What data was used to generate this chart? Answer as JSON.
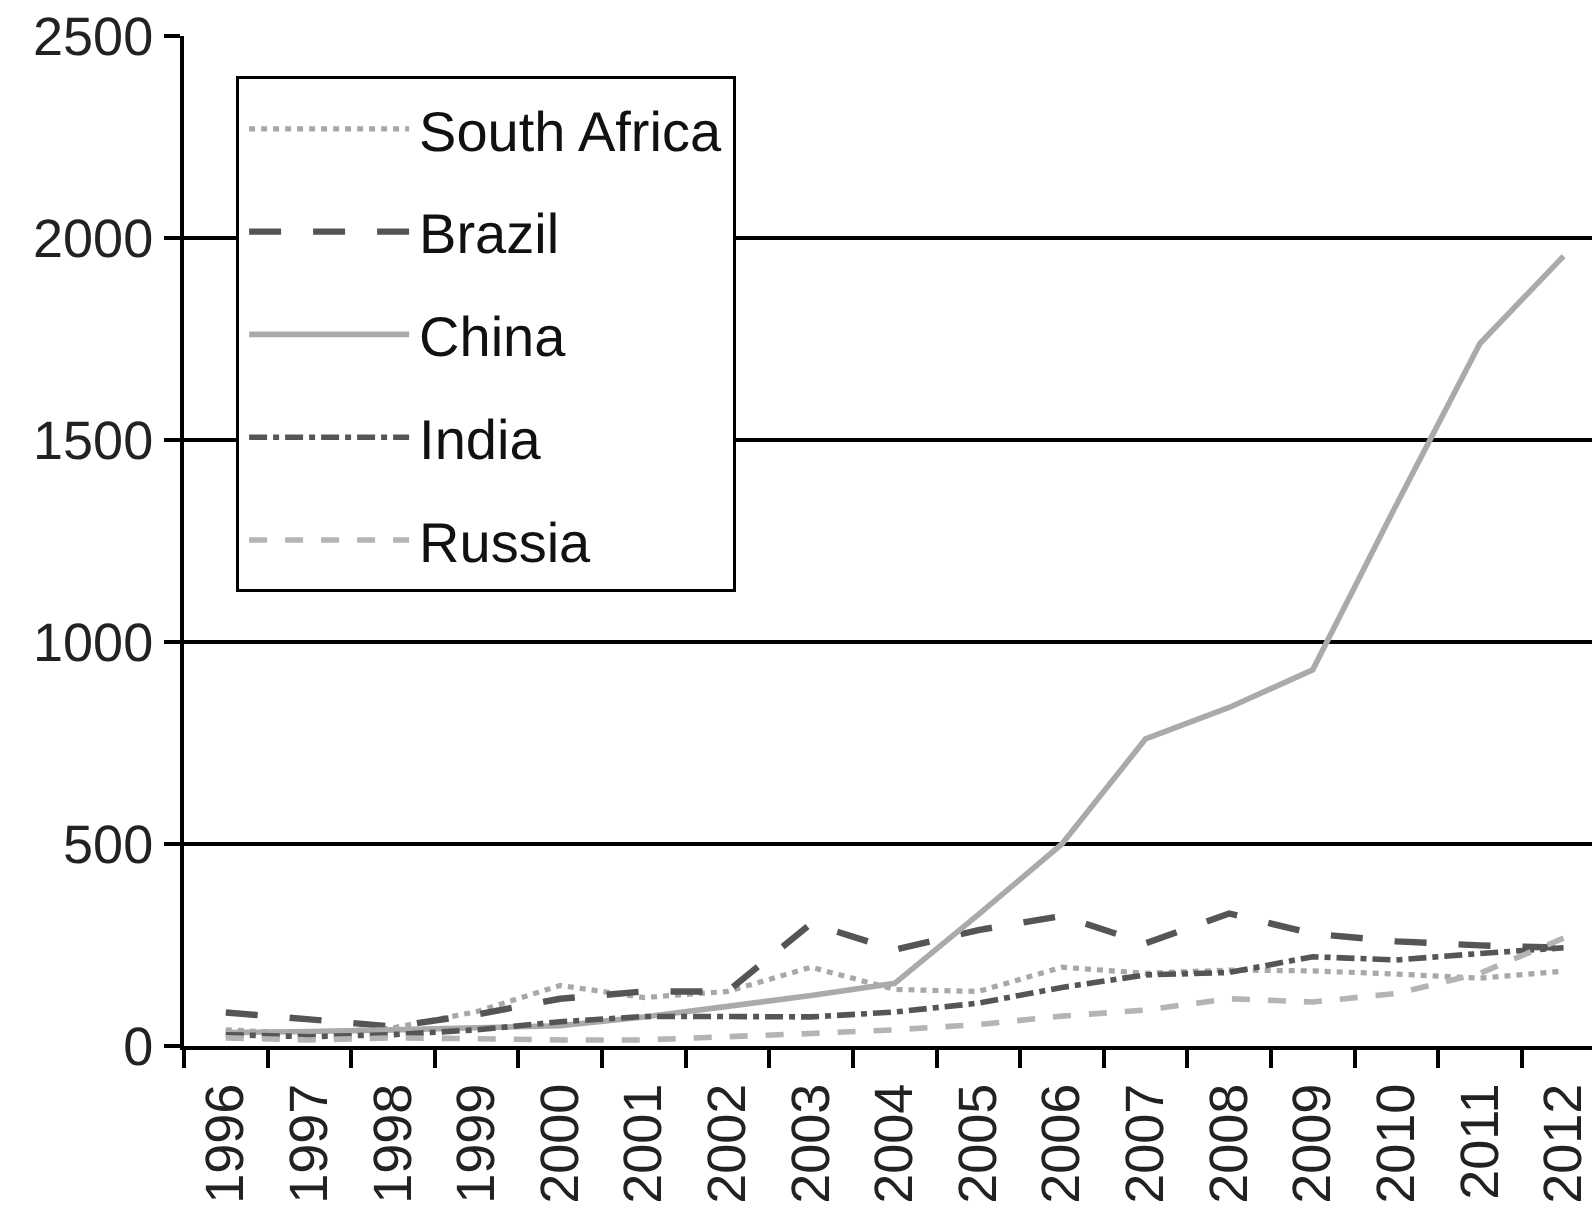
{
  "chart_data": {
    "type": "line",
    "categories": [
      "1996",
      "1997",
      "1998",
      "1999",
      "2000",
      "2001",
      "2002",
      "2003",
      "2004",
      "2005",
      "2006",
      "2007",
      "2008",
      "2009",
      "2010",
      "2011",
      "2012"
    ],
    "ylim": [
      0,
      2500
    ],
    "yticks": [
      0,
      500,
      1000,
      1500,
      2000,
      2500
    ],
    "grid": "y",
    "legend": "top left",
    "series": [
      {
        "name": "South Africa",
        "color": "#a8a8a8",
        "line_style": "dotted",
        "values": [
          40,
          30,
          45,
          85,
          150,
          120,
          135,
          195,
          140,
          135,
          195,
          180,
          188,
          186,
          178,
          168,
          185
        ]
      },
      {
        "name": "Brazil",
        "color": "#555555",
        "line_style": "longdash",
        "values": [
          83,
          66,
          48,
          78,
          117,
          135,
          135,
          303,
          238,
          287,
          322,
          254,
          328,
          278,
          259,
          249,
          243
        ]
      },
      {
        "name": "China",
        "color": "#aaaaaa",
        "line_style": "solid",
        "values": [
          33,
          36,
          40,
          45,
          50,
          72,
          98,
          125,
          155,
          325,
          500,
          760,
          838,
          931,
          1340,
          1739,
          1955
        ]
      },
      {
        "name": "India",
        "color": "#555555",
        "line_style": "dashdot",
        "values": [
          28,
          23,
          28,
          40,
          60,
          73,
          73,
          72,
          84,
          106,
          145,
          176,
          182,
          221,
          213,
          229,
          243
        ]
      },
      {
        "name": "Russia",
        "color": "#b4b4b4",
        "line_style": "dashed",
        "values": [
          20,
          15,
          20,
          18,
          15,
          15,
          23,
          31,
          40,
          53,
          74,
          89,
          117,
          109,
          130,
          180,
          267
        ]
      }
    ]
  }
}
